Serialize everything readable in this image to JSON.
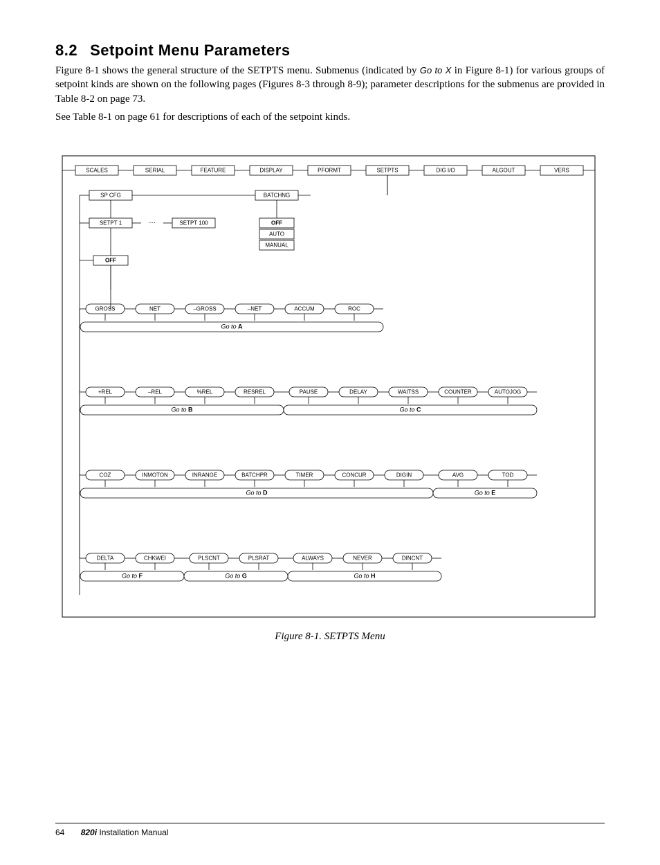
{
  "section": {
    "number": "8.2",
    "title": "Setpoint Menu Parameters"
  },
  "para1_a": "Figure 8-1 shows the general structure of the SETPTS menu. Submenus (indicated by ",
  "para1_goto": "Go to X",
  "para1_b": " in Figure 8-1) for various groups of setpoint kinds are shown on the following pages (Figures 8-3 through 8-9); parameter descriptions for the submenus are provided in Table 8-2 on page 73.",
  "para2": "See Table 8-1 on page 61 for descriptions of each of the setpoint kinds.",
  "caption": "Figure 8-1. SETPTS Menu",
  "topRow": [
    "SCALES",
    "SERIAL",
    "FEATURE",
    "DISPLAY",
    "PFORMT",
    "SETPTS",
    "DIG I/O",
    "ALGOUT",
    "VERS"
  ],
  "row2": {
    "left": "SP CFG",
    "right": "BATCHNG"
  },
  "row3": {
    "setpt1": "SETPT 1",
    "setpt100": "SETPT 100",
    "opts": [
      "OFF",
      "AUTO",
      "MANUAL"
    ]
  },
  "offBox": "OFF",
  "groupA": {
    "items": [
      "GROSS",
      "NET",
      "–GROSS",
      "–NET",
      "ACCUM",
      "ROC"
    ],
    "goto": "A"
  },
  "groupBC": {
    "left": [
      "+REL",
      "–REL",
      "%REL",
      "RESREL"
    ],
    "gotoL": "B",
    "right": [
      "PAUSE",
      "DELAY",
      "WAITSS",
      "COUNTER",
      "AUTOJOG"
    ],
    "gotoR": "C"
  },
  "groupDE": {
    "left": [
      "COZ",
      "INMOTON",
      "INRANGE",
      "BATCHPR",
      "TIMER",
      "CONCUR",
      "DIGIN"
    ],
    "gotoL": "D",
    "right": [
      "AVG",
      "TOD"
    ],
    "gotoR": "E"
  },
  "groupFGH": {
    "f": [
      "DELTA",
      "CHKWEI"
    ],
    "gotoF": "F",
    "g": [
      "PLSCNT",
      "PLSRAT"
    ],
    "gotoG": "G",
    "h": [
      "ALWAYS",
      "NEVER",
      "DINCNT"
    ],
    "gotoH": "H"
  },
  "footer": {
    "page": "64",
    "model": "820i",
    "manual": " Installation Manual"
  },
  "colors": {
    "line": "#000000",
    "fill": "#ffffff"
  }
}
